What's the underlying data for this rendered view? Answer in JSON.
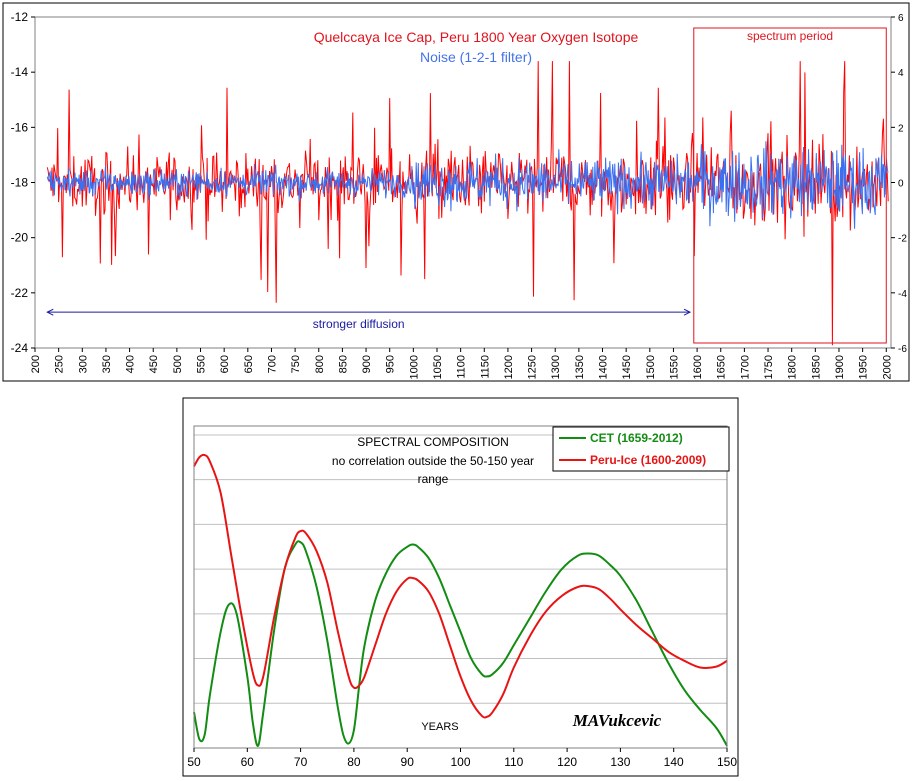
{
  "chart_data": [
    {
      "type": "line",
      "title": "Quelccaya Ice Cap, Peru 1800 Year Oxygen Isotope",
      "subtitle": "Noise (1-2-1 filter)",
      "title_color": "#e0141e",
      "subtitle_color": "#4472e8",
      "xlim": [
        200,
        2010
      ],
      "ylim_left": [
        -24,
        -12
      ],
      "ylim_right": [
        -6,
        6
      ],
      "xticks": [
        "200",
        "250",
        "300",
        "350",
        "400",
        "450",
        "500",
        "550",
        "600",
        "650",
        "700",
        "750",
        "800",
        "850",
        "900",
        "950",
        "1000",
        "1050",
        "1100",
        "1150",
        "1200",
        "1250",
        "1300",
        "1350",
        "1400",
        "1450",
        "1500",
        "1550",
        "1600",
        "1650",
        "1700",
        "1750",
        "1800",
        "1850",
        "1900",
        "1950",
        "2000"
      ],
      "yticks_left": [
        "-12",
        "-14",
        "-16",
        "-18",
        "-20",
        "-22",
        "-24"
      ],
      "yticks_right": [
        "6",
        "4",
        "2",
        "0",
        "-2",
        "-4",
        "-6"
      ],
      "series": [
        {
          "color": "#ff0000",
          "axis": "left",
          "baseline": -18,
          "x_start": 226,
          "x_end": 2004
        },
        {
          "color": "#3a70f0",
          "axis": "right",
          "baseline": 0,
          "x_start": 226,
          "x_end": 2004
        }
      ],
      "annotations": {
        "spectrum_label": "spectrum period",
        "spectrum_range": [
          1593,
          2000
        ],
        "spectrum_color": "#e0141e",
        "diffusion_label": "stronger diffusion",
        "diffusion_range": [
          226,
          1585
        ],
        "diffusion_level": -22.7,
        "diffusion_color": "#1a1aa0"
      }
    },
    {
      "type": "line",
      "title": "SPECTRAL COMPOSITION",
      "subtitle_lines": [
        "no correlation outside the 50-150 year",
        "range"
      ],
      "xlabel": "YEARS",
      "signature": "MAVukcevic",
      "xlim": [
        50,
        150
      ],
      "ylim": [
        0,
        7.2
      ],
      "xticks": [
        "50",
        "60",
        "70",
        "80",
        "90",
        "100",
        "110",
        "120",
        "130",
        "140",
        "150"
      ],
      "grid": true,
      "legend_position": "top-right",
      "series": [
        {
          "name": "CET (1659-2012)",
          "color": "#138c13",
          "x": [
            50,
            51,
            52,
            53,
            55,
            56.5,
            58,
            60,
            61,
            62,
            63,
            65,
            67,
            69,
            70,
            71,
            73,
            75,
            77,
            78,
            79,
            80,
            81,
            82,
            84,
            86,
            88,
            90,
            91,
            92,
            94,
            96,
            98,
            100,
            102,
            104,
            105,
            106,
            108,
            110,
            113,
            116,
            119,
            122,
            124,
            126,
            128,
            130,
            133,
            136,
            139,
            142,
            145,
            148,
            150
          ],
          "values": [
            0.8,
            0.2,
            0.3,
            1.2,
            2.6,
            3.2,
            3.0,
            1.6,
            0.6,
            0.05,
            0.8,
            2.6,
            4.0,
            4.55,
            4.6,
            4.4,
            3.6,
            2.4,
            0.9,
            0.3,
            0.1,
            0.4,
            1.4,
            2.3,
            3.3,
            3.9,
            4.3,
            4.5,
            4.55,
            4.5,
            4.25,
            3.8,
            3.2,
            2.6,
            2.0,
            1.65,
            1.6,
            1.65,
            1.9,
            2.3,
            2.9,
            3.5,
            4.0,
            4.3,
            4.35,
            4.3,
            4.1,
            3.85,
            3.3,
            2.6,
            1.9,
            1.3,
            0.85,
            0.45,
            0.05
          ]
        },
        {
          "name": "Peru-Ice (1600-2009)",
          "color": "#e81414",
          "x": [
            50,
            51,
            52,
            53,
            55,
            57,
            59,
            61,
            62,
            63,
            65,
            67,
            69,
            70,
            71,
            73,
            75,
            77,
            79,
            80,
            81,
            82,
            84,
            86,
            88,
            90,
            91,
            92,
            94,
            96,
            98,
            100,
            102,
            104,
            105,
            106,
            108,
            110,
            113,
            116,
            119,
            122,
            124,
            126,
            128,
            130,
            133,
            136,
            139,
            142,
            145,
            148,
            150
          ],
          "values": [
            6.3,
            6.5,
            6.55,
            6.4,
            5.7,
            4.3,
            2.9,
            1.7,
            1.4,
            1.6,
            2.9,
            4.0,
            4.7,
            4.85,
            4.8,
            4.4,
            3.7,
            2.6,
            1.6,
            1.35,
            1.4,
            1.6,
            2.3,
            3.0,
            3.5,
            3.78,
            3.8,
            3.75,
            3.5,
            3.0,
            2.3,
            1.6,
            1.05,
            0.72,
            0.7,
            0.8,
            1.2,
            1.8,
            2.5,
            3.05,
            3.4,
            3.6,
            3.62,
            3.55,
            3.35,
            3.1,
            2.75,
            2.45,
            2.15,
            1.95,
            1.8,
            1.82,
            1.95
          ]
        }
      ]
    }
  ]
}
